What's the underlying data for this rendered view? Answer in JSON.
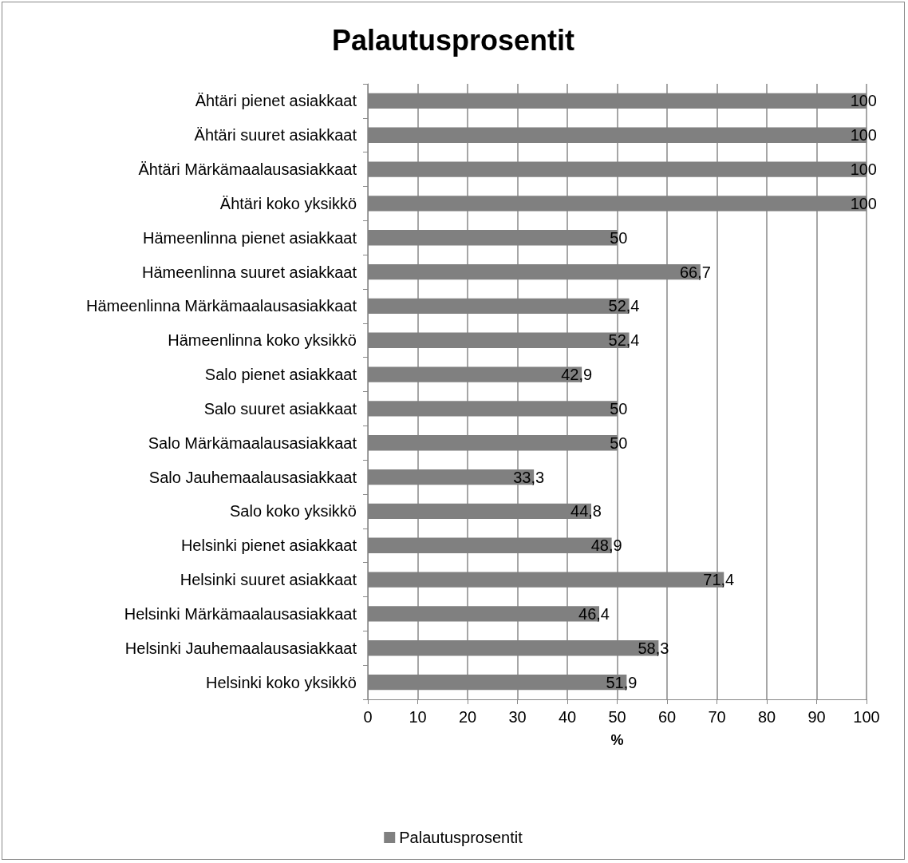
{
  "chart_data": {
    "type": "bar",
    "title": "Palautusprosentit",
    "orientation": "horizontal",
    "xlabel": "%",
    "categories": [
      "Ähtäri pienet asiakkaat",
      "Ähtäri suuret asiakkaat",
      "Ähtäri Märkämaalausasiakkaat",
      "Ähtäri koko yksikkö",
      "Hämeenlinna pienet asiakkaat",
      "Hämeenlinna suuret asiakkaat",
      "Hämeenlinna Märkämaalausasiakkaat",
      "Hämeenlinna koko yksikkö",
      "Salo pienet asiakkaat",
      "Salo suuret asiakkaat",
      "Salo Märkämaalausasiakkaat",
      "Salo Jauhemaalausasiakkaat",
      "Salo koko yksikkö",
      "Helsinki pienet asiakkaat",
      "Helsinki suuret asiakkaat",
      "Helsinki Märkämaalausasiakkaat",
      "Helsinki Jauhemaalausasiakkaat",
      "Helsinki koko yksikkö"
    ],
    "series": [
      {
        "name": "Palautusprosentit",
        "color": "#808080",
        "values": [
          100,
          100,
          100,
          100,
          50,
          66.7,
          52.4,
          52.4,
          42.9,
          50,
          50,
          33.3,
          44.8,
          48.9,
          71.4,
          46.4,
          58.3,
          51.9
        ],
        "value_labels": [
          "100",
          "100",
          "100",
          "100",
          "50",
          "66,7",
          "52,4",
          "52,4",
          "42,9",
          "50",
          "50",
          "33,3",
          "44,8",
          "48,9",
          "71,4",
          "46,4",
          "58,3",
          "51,9"
        ]
      }
    ],
    "xlim": [
      0,
      100
    ],
    "xticks": [
      0,
      10,
      20,
      30,
      40,
      50,
      60,
      70,
      80,
      90,
      100
    ],
    "grid": "x",
    "legend": "bottom"
  }
}
